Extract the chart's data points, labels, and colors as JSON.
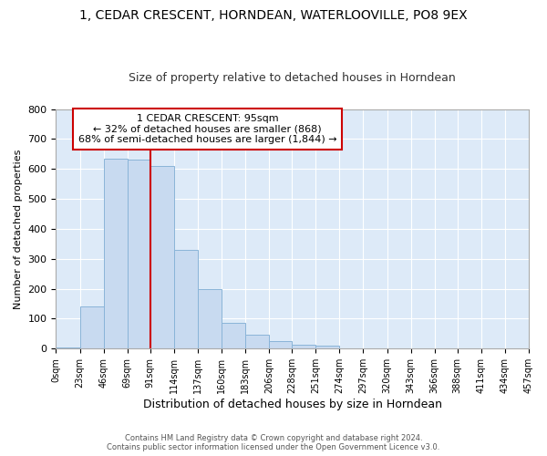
{
  "title": "1, CEDAR CRESCENT, HORNDEAN, WATERLOOVILLE, PO8 9EX",
  "subtitle": "Size of property relative to detached houses in Horndean",
  "xlabel": "Distribution of detached houses by size in Horndean",
  "ylabel": "Number of detached properties",
  "bin_labels": [
    "0sqm",
    "23sqm",
    "46sqm",
    "69sqm",
    "91sqm",
    "114sqm",
    "137sqm",
    "160sqm",
    "183sqm",
    "206sqm",
    "228sqm",
    "251sqm",
    "274sqm",
    "297sqm",
    "320sqm",
    "343sqm",
    "366sqm",
    "388sqm",
    "411sqm",
    "434sqm",
    "457sqm"
  ],
  "bar_heights": [
    5,
    140,
    635,
    630,
    610,
    330,
    200,
    85,
    47,
    25,
    12,
    11,
    0,
    0,
    0,
    0,
    0,
    0,
    0,
    0,
    5
  ],
  "bar_color": "#c8daf0",
  "bar_edge_color": "#8ab4d8",
  "property_label": "1 CEDAR CRESCENT: 95sqm",
  "annotation_line1": "← 32% of detached houses are smaller (868)",
  "annotation_line2": "68% of semi-detached houses are larger (1,844) →",
  "vline_color": "#cc0000",
  "annotation_box_color": "#cc0000",
  "ylim": [
    0,
    800
  ],
  "yticks": [
    0,
    100,
    200,
    300,
    400,
    500,
    600,
    700,
    800
  ],
  "bin_edges": [
    0,
    23,
    46,
    69,
    91,
    114,
    137,
    160,
    183,
    206,
    228,
    251,
    274,
    297,
    320,
    343,
    366,
    388,
    411,
    434,
    457
  ],
  "footer_line1": "Contains HM Land Registry data © Crown copyright and database right 2024.",
  "footer_line2": "Contains public sector information licensed under the Open Government Licence v3.0.",
  "fig_bg_color": "#ffffff",
  "plot_bg_color": "#ddeaf8",
  "grid_color": "#ffffff",
  "title_fontsize": 10,
  "subtitle_fontsize": 9,
  "vline_x": 91
}
